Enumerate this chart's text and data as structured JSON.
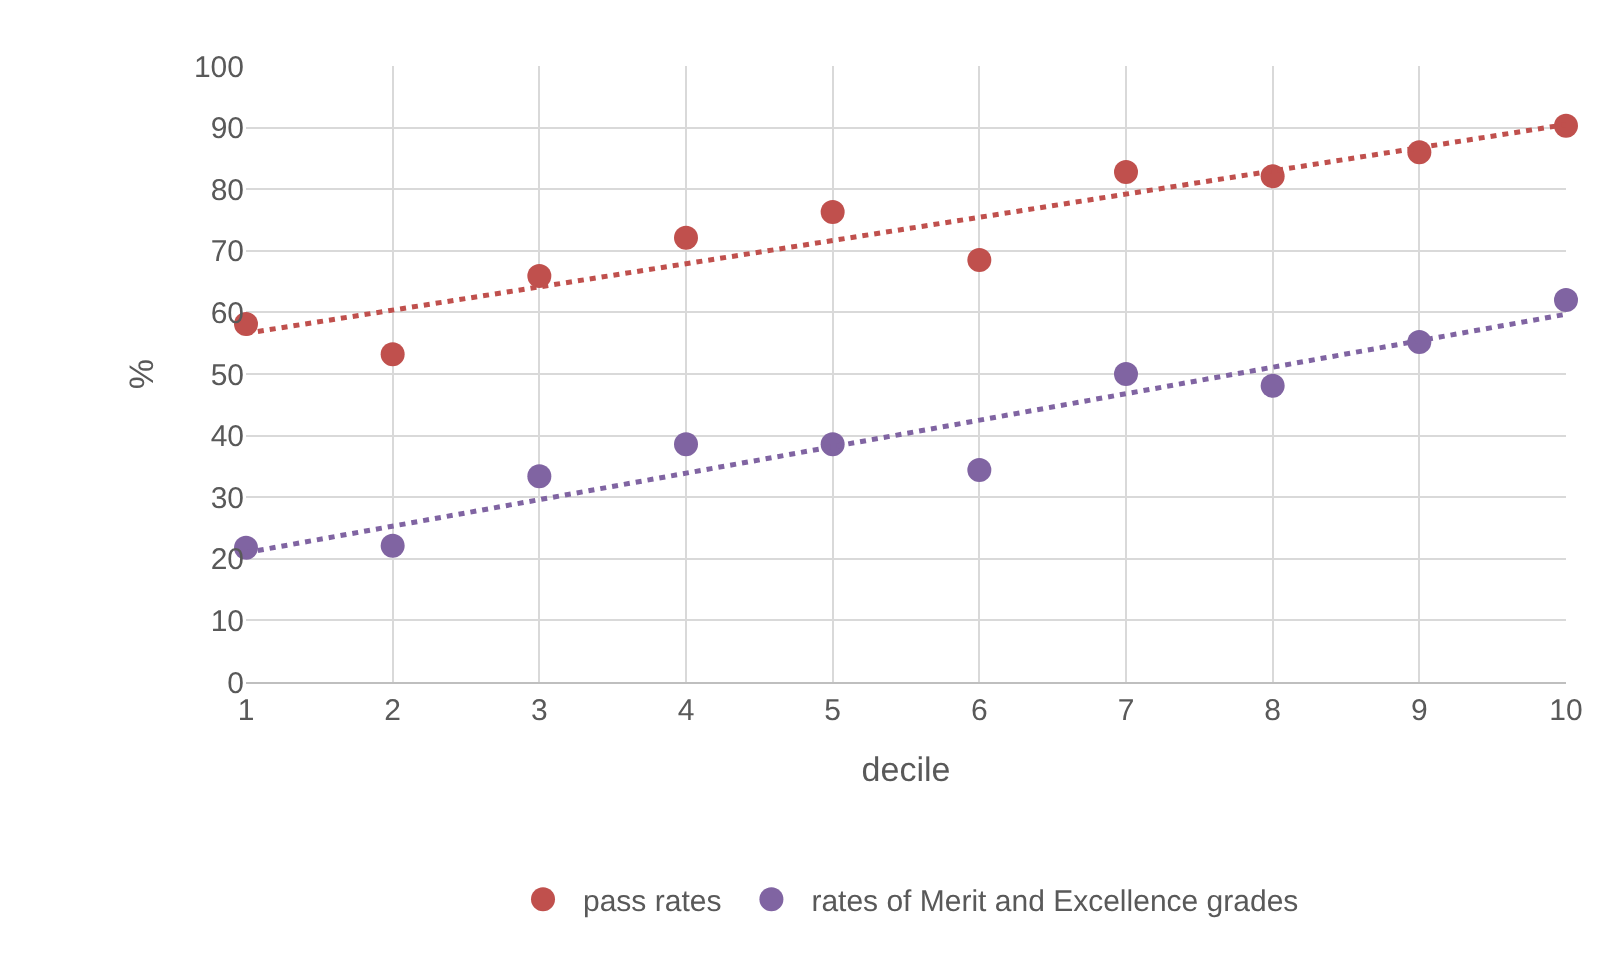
{
  "chart_data": {
    "type": "scatter",
    "xlabel": "decile",
    "ylabel": "%",
    "x": [
      1,
      2,
      3,
      4,
      5,
      6,
      7,
      8,
      9,
      10
    ],
    "series": [
      {
        "name": "pass rates",
        "color": "#c0504d",
        "values": [
          58.1,
          53.2,
          65.9,
          72.1,
          76.3,
          68.5,
          82.8,
          82.1,
          86.0,
          90.3
        ]
      },
      {
        "name": "rates of Merit and Excellence grades",
        "color": "#8064a2",
        "values": [
          21.8,
          22.1,
          33.4,
          38.6,
          38.6,
          34.4,
          50.0,
          48.1,
          55.2,
          62.0
        ]
      },
      {
        "type": "line",
        "color": "#c0504d",
        "values": [
          56.6,
          null,
          null,
          null,
          null,
          null,
          null,
          null,
          null,
          90.5
        ],
        "line_style": "dotted",
        "marker": "none"
      },
      {
        "type": "line",
        "color": "#8064a2",
        "values": [
          21.0,
          null,
          null,
          null,
          null,
          null,
          null,
          null,
          null,
          59.7
        ],
        "line_style": "dotted",
        "marker": "none"
      }
    ],
    "xlim": [
      1,
      10
    ],
    "xticks": [
      1,
      2,
      3,
      4,
      5,
      6,
      7,
      8,
      9,
      10
    ],
    "ylim": [
      0,
      100
    ],
    "yticks": [
      0,
      10,
      20,
      30,
      40,
      50,
      60,
      70,
      80,
      90,
      100
    ],
    "grid": true,
    "legend": "bottom",
    "marker": "circle"
  }
}
